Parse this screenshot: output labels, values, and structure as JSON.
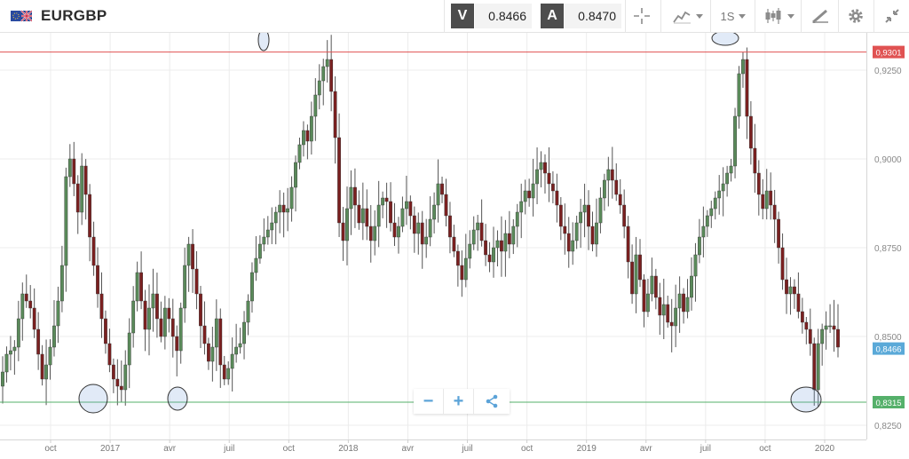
{
  "header": {
    "flag_icon": "eu-uk-flag-icon",
    "symbol": "EURGBP",
    "sell_label": "V",
    "sell_price": "0.8466",
    "buy_label": "A",
    "buy_price": "0.8470",
    "crosshair_icon": "crosshair-icon",
    "chart_type_icon": "line-chart-icon",
    "timeframe": "1S",
    "candle_icon": "candlestick-icon",
    "draw_icon": "drawing-tools-icon",
    "settings_icon": "gear-icon",
    "collapse_icon": "collapse-icon"
  },
  "navigation": {
    "zoom_out": "−",
    "zoom_in": "+",
    "share_icon": "share-icon"
  },
  "colors": {
    "bull": "#5a8a5a",
    "bear": "#7a2020",
    "resistance": "#e05252",
    "support": "#55b06a",
    "current": "#5aa9d8"
  },
  "chart_data": {
    "type": "candlestick",
    "ylim": [
      0.821,
      0.9355
    ],
    "y_ticks": [
      "0,8250",
      "0,8500",
      "0,8750",
      "0,9000",
      "0,9250"
    ],
    "x_ticks": [
      "oct",
      "2017",
      "avr",
      "juil",
      "oct",
      "2018",
      "avr",
      "juil",
      "oct",
      "2019",
      "avr",
      "juil",
      "oct",
      "2020"
    ],
    "resistance_label": "0,9301",
    "resistance_value": 0.9301,
    "current_label": "0,8466",
    "current_value": 0.8466,
    "support_label": "0,8315",
    "support_value": 0.8315,
    "series_close": [
      0.84,
      0.845,
      0.846,
      0.847,
      0.855,
      0.862,
      0.86,
      0.858,
      0.852,
      0.845,
      0.838,
      0.842,
      0.847,
      0.853,
      0.86,
      0.87,
      0.895,
      0.9,
      0.893,
      0.885,
      0.898,
      0.89,
      0.878,
      0.87,
      0.862,
      0.855,
      0.848,
      0.842,
      0.838,
      0.836,
      0.835,
      0.842,
      0.851,
      0.86,
      0.868,
      0.86,
      0.852,
      0.858,
      0.862,
      0.855,
      0.85,
      0.858,
      0.855,
      0.85,
      0.846,
      0.858,
      0.87,
      0.876,
      0.869,
      0.862,
      0.853,
      0.848,
      0.843,
      0.847,
      0.855,
      0.842,
      0.838,
      0.841,
      0.845,
      0.847,
      0.848,
      0.854,
      0.86,
      0.868,
      0.872,
      0.876,
      0.878,
      0.88,
      0.882,
      0.885,
      0.887,
      0.885,
      0.886,
      0.892,
      0.899,
      0.904,
      0.908,
      0.905,
      0.912,
      0.918,
      0.922,
      0.926,
      0.928,
      0.919,
      0.906,
      0.882,
      0.877,
      0.886,
      0.892,
      0.887,
      0.882,
      0.886,
      0.881,
      0.877,
      0.881,
      0.887,
      0.889,
      0.888,
      0.882,
      0.878,
      0.881,
      0.886,
      0.888,
      0.884,
      0.879,
      0.882,
      0.876,
      0.878,
      0.883,
      0.887,
      0.893,
      0.89,
      0.884,
      0.878,
      0.874,
      0.87,
      0.866,
      0.872,
      0.876,
      0.88,
      0.882,
      0.877,
      0.873,
      0.871,
      0.875,
      0.877,
      0.874,
      0.879,
      0.876,
      0.881,
      0.885,
      0.888,
      0.891,
      0.889,
      0.893,
      0.897,
      0.899,
      0.896,
      0.893,
      0.891,
      0.887,
      0.881,
      0.879,
      0.874,
      0.877,
      0.882,
      0.885,
      0.887,
      0.881,
      0.876,
      0.882,
      0.889,
      0.894,
      0.897,
      0.894,
      0.89,
      0.887,
      0.881,
      0.871,
      0.862,
      0.873,
      0.866,
      0.857,
      0.862,
      0.867,
      0.861,
      0.856,
      0.859,
      0.854,
      0.853,
      0.858,
      0.862,
      0.857,
      0.861,
      0.867,
      0.873,
      0.878,
      0.881,
      0.884,
      0.886,
      0.889,
      0.891,
      0.893,
      0.896,
      0.898,
      0.912,
      0.924,
      0.928,
      0.912,
      0.903,
      0.896,
      0.89,
      0.886,
      0.891,
      0.887,
      0.883,
      0.875,
      0.866,
      0.862,
      0.864,
      0.862,
      0.857,
      0.854,
      0.852,
      0.848,
      0.835,
      0.848,
      0.852,
      0.853,
      0.853,
      0.852,
      0.847
    ]
  }
}
